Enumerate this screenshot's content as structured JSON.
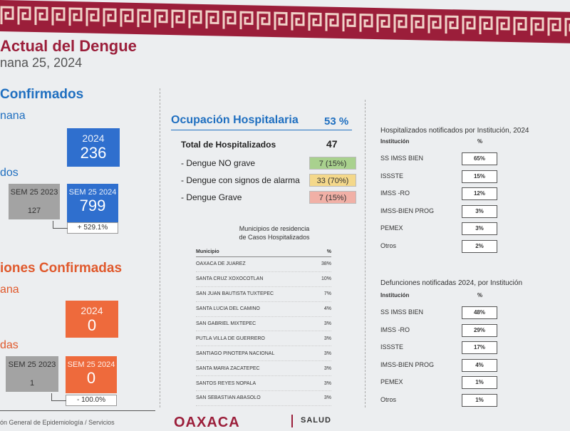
{
  "header": {
    "title": "Actual del Dengue",
    "subtitle": "nana 25, 2024"
  },
  "confirmed": {
    "section_title": "Confirmados",
    "week_label": "nana",
    "week_box": {
      "year": "2024",
      "value": "236"
    },
    "accum_label": "dos",
    "prev_box": {
      "label": "SEM 25 2023",
      "value": "127"
    },
    "curr_box": {
      "label": "SEM 25 2024",
      "value": "799"
    },
    "change": "+ 529.1%"
  },
  "deaths": {
    "section_title": "iones Confirmadas",
    "week_label": "ana",
    "week_box": {
      "year": "2024",
      "value": "0"
    },
    "accum_label": "das",
    "prev_box": {
      "label": "SEM 25 2023",
      "value": "1"
    },
    "curr_box": {
      "label": "SEM 25 2024",
      "value": "0"
    },
    "change": "- 100.0%"
  },
  "occupancy": {
    "title": "Ocupación Hospitalaria",
    "percent": "53 %",
    "total_label": "Total de Hospitalizados",
    "total_value": "47",
    "rows": [
      {
        "label": "- Dengue NO grave",
        "value": "7 (15%)",
        "color": "#a9d18e"
      },
      {
        "label": "- Dengue con signos de alarma",
        "value": "33 (70%)",
        "color": "#f4d88a"
      },
      {
        "label": "- Dengue Grave",
        "value": "7 (15%)",
        "color": "#f1b0a6"
      }
    ]
  },
  "municipios": {
    "title_line1": "Municipios de residencia",
    "title_line2": "de Casos Hospitalizados",
    "col_name": "Municipio",
    "col_pct": "%",
    "rows": [
      {
        "name": "OAXACA DE JUAREZ",
        "pct": "38%"
      },
      {
        "name": "SANTA CRUZ XOXOCOTLAN",
        "pct": "10%"
      },
      {
        "name": "SAN JUAN BAUTISTA TUXTEPEC",
        "pct": "7%"
      },
      {
        "name": "SANTA LUCIA DEL CAMINO",
        "pct": "4%"
      },
      {
        "name": "SAN GABRIEL MIXTEPEC",
        "pct": "3%"
      },
      {
        "name": "PUTLA VILLA DE GUERRERO",
        "pct": "3%"
      },
      {
        "name": "SANTIAGO PINOTEPA NACIONAL",
        "pct": "3%"
      },
      {
        "name": "SANTA MARIA ZACATEPEC",
        "pct": "3%"
      },
      {
        "name": "SANTOS REYES NOPALA",
        "pct": "3%"
      },
      {
        "name": "SAN SEBASTIAN ABASOLO",
        "pct": "3%"
      }
    ]
  },
  "hosp_inst": {
    "title": "Hospitalizados notificados por Institución, 2024",
    "col_name": "Institución",
    "col_pct": "%",
    "rows": [
      {
        "name": "SS IMSS BIEN",
        "pct": "65%"
      },
      {
        "name": "ISSSTE",
        "pct": "15%"
      },
      {
        "name": "IMSS -RO",
        "pct": "12%"
      },
      {
        "name": "IMSS-BIEN PROG",
        "pct": "3%"
      },
      {
        "name": "PEMEX",
        "pct": "3%"
      },
      {
        "name": "Otros",
        "pct": "2%"
      }
    ]
  },
  "def_inst": {
    "title": "Defunciones notificadas 2024, por Institución",
    "col_name": "Institución",
    "col_pct": "%",
    "rows": [
      {
        "name": "SS IMSS BIEN",
        "pct": "48%"
      },
      {
        "name": "IMSS -RO",
        "pct": "29%"
      },
      {
        "name": "ISSSTE",
        "pct": "17%"
      },
      {
        "name": "IMSS-BIEN PROG",
        "pct": "4%"
      },
      {
        "name": "PEMEX",
        "pct": "1%"
      },
      {
        "name": "Otros",
        "pct": "1%"
      }
    ]
  },
  "footer": {
    "source": "ón General de Epidemiología / Servicios",
    "logo": "OAXACA",
    "salud": "SALUD"
  },
  "colors": {
    "brand": "#9b1e3a",
    "blue": "#2f6fce",
    "orange": "#ee6a3c"
  }
}
